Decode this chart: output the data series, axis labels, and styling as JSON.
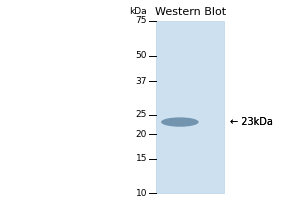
{
  "title": "Western Blot",
  "title_fontsize": 8,
  "background_color": "#ffffff",
  "lane_color": "#cce0f0",
  "band_color": "#6a8ca8",
  "ladder_marks": [
    75,
    50,
    37,
    25,
    20,
    15,
    10
  ],
  "kda_label": "kDa",
  "band_kda": 23,
  "band_label": "← 23kDa",
  "tick_fontsize": 6.5,
  "band_label_fontsize": 7,
  "fig_width": 3.0,
  "fig_height": 2.0,
  "dpi": 100
}
